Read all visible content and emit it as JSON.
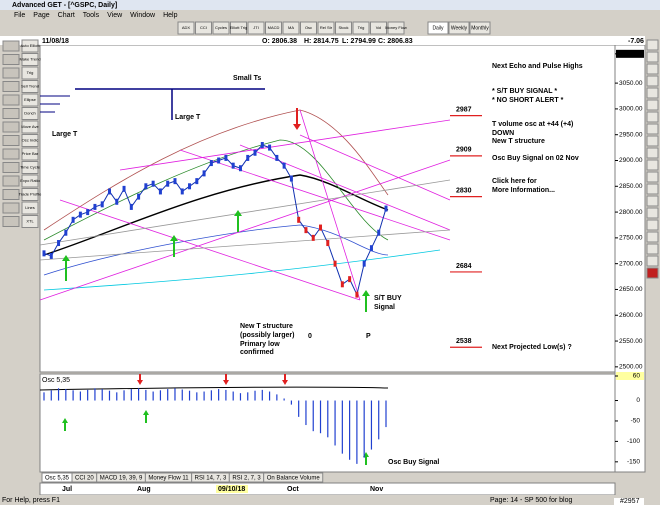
{
  "window": {
    "title": "Advanced GET - [^GSPC, Daily]"
  },
  "menu": [
    "File",
    "Page",
    "Chart",
    "Tools",
    "View",
    "Window",
    "Help"
  ],
  "toolbar": [
    "ADX",
    "CCI",
    "Cycles",
    "Elliott Trig",
    "JTI",
    "MACD",
    "MA",
    "Osc",
    "Rel Str",
    "Stock",
    "Trig",
    "Vol",
    "Money Flow"
  ],
  "timeframes": [
    "Daily",
    "Weekly",
    "Monthly"
  ],
  "left_toolbar": [
    "Auto Elliott",
    "Make Trend",
    "Trig",
    "Sell Trend",
    "Ellipse",
    "Donch",
    "Move Ave",
    "Osc Indic",
    "Price Bar",
    "Time Cycle",
    "Expo Ratio",
    "Trade Profile",
    "Lines",
    "XTL"
  ],
  "info": {
    "date": "11/08/18",
    "open": "O: 2806.38",
    "high": "H: 2814.75",
    "low": "L: 2794.99",
    "close": "C: 2806.83",
    "change": "-7.06"
  },
  "price_chart": {
    "ylim": [
      2490,
      3120
    ],
    "yticks": [
      3106.75,
      {
        "value": 3050,
        "label": "3050.00"
      },
      {
        "value": 3000,
        "label": "3000.00"
      },
      {
        "value": 2950,
        "label": "2950.00"
      },
      {
        "value": 2900,
        "label": "2900.00"
      },
      {
        "value": 2850,
        "label": "2850.00"
      },
      {
        "value": 2800,
        "label": "2800.00"
      },
      {
        "value": 2750,
        "label": "2750.00"
      },
      {
        "value": 2700,
        "label": "2700.00"
      },
      {
        "value": 2650,
        "label": "2650.00"
      },
      {
        "value": 2600,
        "label": "2600.00"
      },
      {
        "value": 2550,
        "label": "2550.00"
      },
      {
        "value": 2500,
        "label": "2500.00"
      }
    ],
    "closes": [
      2720,
      2715,
      2740,
      2760,
      2785,
      2795,
      2800,
      2810,
      2815,
      2840,
      2820,
      2845,
      2810,
      2830,
      2850,
      2855,
      2840,
      2855,
      2860,
      2840,
      2850,
      2860,
      2875,
      2895,
      2900,
      2905,
      2890,
      2885,
      2905,
      2915,
      2930,
      2925,
      2905,
      2890,
      2865,
      2785,
      2765,
      2750,
      2770,
      2740,
      2700,
      2660,
      2670,
      2640,
      2700,
      2730,
      2760,
      2806.83
    ],
    "levels": [
      2987,
      2909,
      2830,
      2684,
      2538
    ]
  },
  "annotations": [
    "Small Ts",
    "Large T",
    "Large T",
    "S/T BUY",
    "Signal",
    "New T structure",
    "(possibly larger)",
    "Primary low",
    "confirmed",
    "0",
    "P"
  ],
  "commentary": [
    "Next Echo and Pulse Highs",
    "* S/T BUY SIGNAL *",
    "* NO SHORT ALERT *",
    "T volume osc at +44 (+4)",
    "DOWN",
    "New T structure",
    "Osc Buy Signal on 02 Nov",
    "Click here for",
    "More Information...",
    "Next Projected Low(s) ?"
  ],
  "oscillator": {
    "label": "Osc 5,35",
    "ylim": [
      -170,
      60
    ],
    "yticks": [
      60,
      0,
      -50,
      -100,
      -150
    ],
    "annotation": "Osc Buy Signal",
    "values": [
      20,
      25,
      30,
      28,
      25,
      22,
      26,
      30,
      28,
      24,
      20,
      25,
      28,
      30,
      26,
      22,
      25,
      28,
      30,
      27,
      24,
      20,
      22,
      25,
      28,
      26,
      22,
      18,
      20,
      24,
      26,
      22,
      15,
      5,
      -10,
      -40,
      -60,
      -75,
      -80,
      -90,
      -110,
      -130,
      -145,
      -155,
      -140,
      -120,
      -95,
      -65
    ]
  },
  "tabs": [
    "Osc 5,35",
    "CCI 20",
    "MACD 19, 39, 9",
    "Money Flow 11",
    "RSI 14, 7, 3",
    "RSI 2, 7, 3",
    "On Balance Volume"
  ],
  "x_axis": [
    "Jul",
    "Aug",
    "09/10/18",
    "Oct",
    "Nov"
  ],
  "status": {
    "help": "For Help, press F1",
    "page": "Page: 14 - SP 500 for blog",
    "number": "#2957"
  }
}
